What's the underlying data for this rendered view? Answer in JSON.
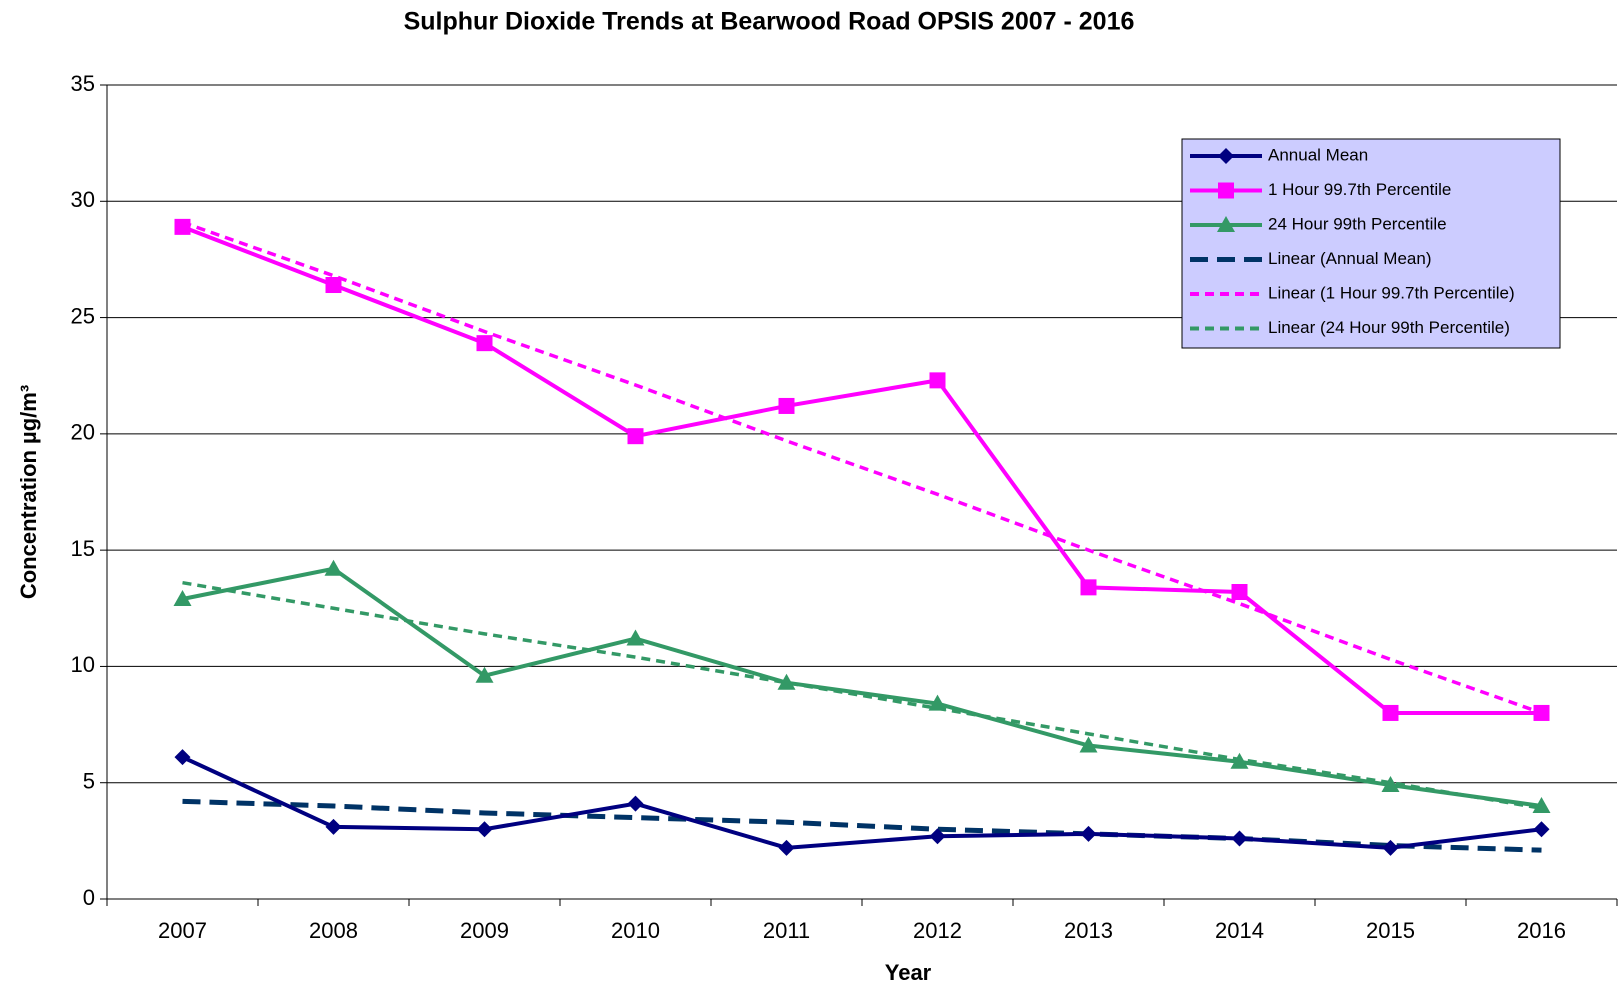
{
  "chart_data": {
    "type": "line",
    "title": "Sulphur Dioxide Trends at Bearwood Road OPSIS 2007 - 2016",
    "x_label": "Year",
    "y_label": "Concentration  µg/m³",
    "categories": [
      "2007",
      "2008",
      "2009",
      "2010",
      "2011",
      "2012",
      "2013",
      "2014",
      "2015",
      "2016"
    ],
    "ylim": [
      0,
      35
    ],
    "yticks": [
      0,
      5,
      10,
      15,
      20,
      25,
      30,
      35
    ],
    "grid": true,
    "legend": "upper right",
    "series": [
      {
        "name": "Annual Mean",
        "color": "#000080",
        "marker": "diamond",
        "dash": "solid",
        "values": [
          6.1,
          3.1,
          3.0,
          4.1,
          2.2,
          2.7,
          2.8,
          2.6,
          2.2,
          3.0
        ]
      },
      {
        "name": "1 Hour 99.7th Percentile",
        "color": "#ff00ff",
        "marker": "square",
        "dash": "solid",
        "values": [
          28.9,
          26.4,
          23.9,
          19.9,
          21.2,
          22.3,
          13.4,
          13.2,
          8.0,
          8.0
        ]
      },
      {
        "name": "24 Hour 99th Percentile",
        "color": "#339966",
        "marker": "triangle",
        "dash": "solid",
        "values": [
          12.9,
          14.2,
          9.6,
          11.2,
          9.3,
          8.4,
          6.6,
          5.9,
          4.9,
          4.0
        ]
      },
      {
        "name": "Linear (Annual Mean)",
        "color": "#003366",
        "marker": "none",
        "dash": "long",
        "values": [
          4.2,
          4.0,
          3.7,
          3.5,
          3.3,
          3.0,
          2.8,
          2.6,
          2.3,
          2.1
        ]
      },
      {
        "name": "Linear (1 Hour 99.7th Percentile)",
        "color": "#ff00ff",
        "marker": "none",
        "dash": "short",
        "values": [
          29.1,
          26.8,
          24.4,
          22.1,
          19.7,
          17.4,
          15.0,
          12.7,
          10.3,
          8.0
        ]
      },
      {
        "name": "Linear (24 Hour 99th Percentile)",
        "color": "#339966",
        "marker": "none",
        "dash": "short",
        "values": [
          13.6,
          12.5,
          11.4,
          10.4,
          9.3,
          8.2,
          7.1,
          6.0,
          5.0,
          3.9
        ]
      }
    ]
  }
}
